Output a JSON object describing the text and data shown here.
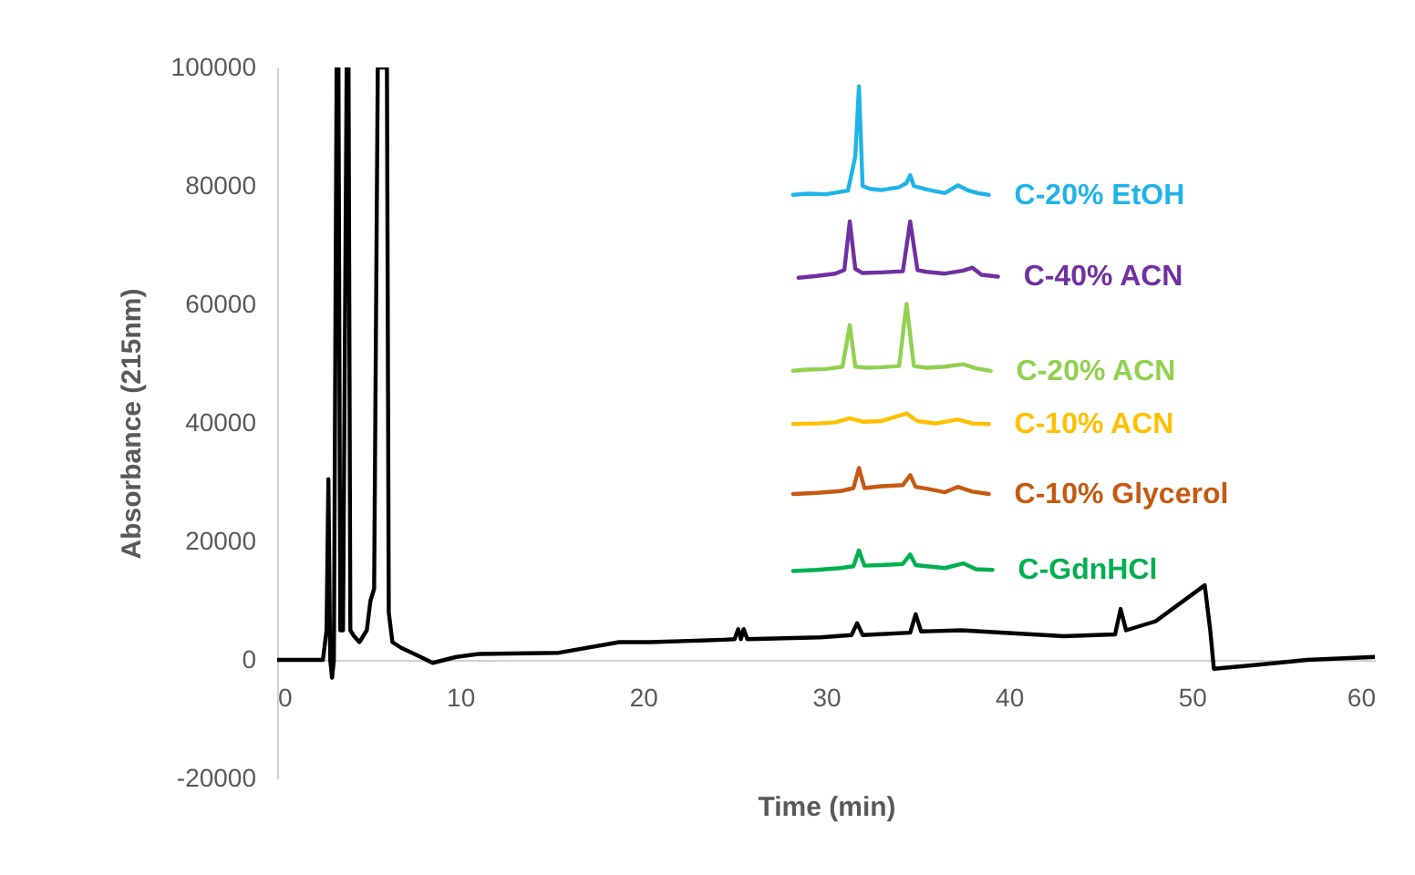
{
  "chart_data": {
    "type": "line",
    "xlabel": "Time (min)",
    "ylabel": "Absorbance (215nm)",
    "xlim": [
      0,
      60
    ],
    "ylim": [
      -20000,
      100000
    ],
    "xticks": [
      0,
      10,
      20,
      30,
      40,
      50,
      60
    ],
    "yticks": [
      -20000,
      0,
      20000,
      40000,
      60000,
      80000,
      100000
    ],
    "series": [
      {
        "color": "#000000",
        "x": [
          0,
          2.5,
          2.7,
          2.8,
          2.9,
          3.0,
          3.1,
          3.25,
          3.35,
          3.45,
          3.6,
          3.8,
          3.9,
          4.0,
          4.2,
          4.5,
          4.9,
          5.1,
          5.3,
          5.5,
          5.6,
          6.0,
          6.1,
          6.3,
          6.8,
          7.5,
          8.5,
          9.8,
          11,
          15.4,
          18.7,
          20.4,
          24.4,
          25.0,
          25.2,
          25.35,
          25.5,
          25.7,
          29.7,
          31.4,
          31.7,
          32.0,
          34.6,
          34.9,
          35.2,
          37.4,
          43,
          45.8,
          46.1,
          46.4,
          48,
          50.7,
          51.0,
          51.2,
          53,
          56.3,
          60
        ],
        "values": [
          0,
          0,
          5000,
          30500,
          0,
          -3000,
          0,
          100000,
          100000,
          5000,
          5000,
          100000,
          100000,
          5000,
          4000,
          3000,
          5000,
          10000,
          12000,
          100000,
          100000,
          100000,
          8000,
          3000,
          2000,
          1000,
          -500,
          500,
          1000,
          1200,
          3000,
          3000,
          3400,
          3500,
          5200,
          3500,
          5200,
          3500,
          3800,
          4200,
          6200,
          4200,
          4600,
          7700,
          4800,
          5000,
          4000,
          4300,
          8600,
          5000,
          6500,
          12600,
          5000,
          -1500,
          -1000,
          0,
          500
        ]
      },
      {
        "name": "C-20% EtOH",
        "color": "#1fb4e8",
        "x": [
          28.2,
          29,
          30,
          31.2,
          31.6,
          31.8,
          32.0,
          32.4,
          33,
          34,
          34.4,
          34.6,
          34.8,
          35.5,
          36.5,
          37.2,
          37.8,
          38.3,
          38.9
        ],
        "values": [
          78500,
          78700,
          78600,
          79200,
          85000,
          96800,
          80000,
          79500,
          79300,
          79800,
          80500,
          81800,
          80000,
          79400,
          78800,
          80100,
          79200,
          78800,
          78500
        ]
      },
      {
        "name": "C-40% ACN",
        "color": "#7030a0",
        "x": [
          28.5,
          29.5,
          30.5,
          31.0,
          31.3,
          31.6,
          32,
          33,
          34.2,
          34.6,
          35.0,
          35.5,
          36.5,
          37.5,
          38,
          38.5,
          39.4
        ],
        "values": [
          64500,
          64800,
          65200,
          65800,
          74000,
          66000,
          65300,
          65400,
          65600,
          74000,
          65800,
          65500,
          65200,
          65700,
          66200,
          65000,
          64700
        ]
      },
      {
        "name": "C-20% ACN",
        "color": "#92d050",
        "x": [
          28.2,
          29,
          30,
          30.9,
          31.3,
          31.6,
          32.2,
          33,
          34.0,
          34.4,
          34.8,
          35.5,
          36.5,
          37.5,
          38.2,
          39.0
        ],
        "values": [
          48800,
          49000,
          49100,
          49500,
          56500,
          49500,
          49300,
          49400,
          49600,
          60100,
          49600,
          49300,
          49500,
          49900,
          49200,
          48800
        ]
      },
      {
        "name": "C-10% ACN",
        "color": "#ffc000",
        "x": [
          28.2,
          29.5,
          30.5,
          31.3,
          32,
          33,
          34.4,
          35,
          36,
          37.2,
          38,
          38.9
        ],
        "values": [
          39800,
          39900,
          40100,
          40800,
          40200,
          40300,
          41600,
          40300,
          39900,
          40600,
          39900,
          39800
        ]
      },
      {
        "name": "C-10% Glycerol",
        "color": "#c55a11",
        "x": [
          28.2,
          29.5,
          30.8,
          31.5,
          31.8,
          32.1,
          33,
          34.2,
          34.6,
          34.9,
          35.5,
          36.5,
          37.2,
          38,
          38.9
        ],
        "values": [
          28000,
          28200,
          28500,
          29000,
          32400,
          29000,
          29300,
          29500,
          31200,
          29200,
          28900,
          28300,
          29200,
          28400,
          28000
        ]
      },
      {
        "name": "C-GdnHCl",
        "color": "#00b050",
        "x": [
          28.2,
          29.5,
          30.8,
          31.5,
          31.8,
          32.1,
          33,
          34.2,
          34.6,
          34.9,
          35.5,
          36.5,
          37.5,
          38.2,
          39.1
        ],
        "values": [
          15000,
          15200,
          15500,
          15800,
          18500,
          15900,
          16000,
          16200,
          17800,
          16000,
          15800,
          15500,
          16300,
          15300,
          15200
        ]
      }
    ]
  }
}
